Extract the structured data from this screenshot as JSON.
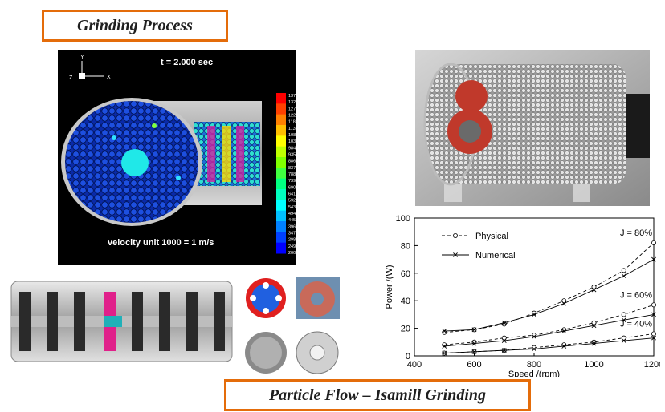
{
  "titles": {
    "top": "Grinding Process",
    "bottom": "Particle Flow – Isamill Grinding"
  },
  "simulation": {
    "time_label": "t = 2.000 sec",
    "velocity_label": "velocity unit 1000 = 1 m/s",
    "axis_y": "Y",
    "axis_z": "Z",
    "axis_x": "X",
    "colorbar_ticks": [
      "1376",
      "1327",
      "1278",
      "1229",
      "1180",
      "1131",
      "1082",
      "1033",
      "984",
      "935",
      "886",
      "837",
      "788",
      "739",
      "690",
      "641",
      "592",
      "543",
      "494",
      "445",
      "396",
      "347",
      "298",
      "249",
      "200"
    ],
    "colorbar_colors": [
      "#ff0000",
      "#ff4000",
      "#ff8000",
      "#ffbf00",
      "#ffff00",
      "#bfff00",
      "#80ff00",
      "#40ff40",
      "#00ff80",
      "#00ffbf",
      "#00ffff",
      "#00bfff",
      "#0080ff",
      "#0040ff",
      "#0000ff"
    ]
  },
  "chart_data": {
    "type": "line",
    "xlabel": "Speed /(rpm)",
    "ylabel": "Power /(W)",
    "xlim": [
      400,
      1200
    ],
    "ylim": [
      0,
      100
    ],
    "xticks": [
      "400",
      "600",
      "800",
      "1000",
      "1200"
    ],
    "yticks": [
      "0",
      "20",
      "40",
      "60",
      "80",
      "100"
    ],
    "legend": [
      {
        "name": "Physical",
        "style": "dashed-circle"
      },
      {
        "name": "Numerical",
        "style": "solid-cross"
      }
    ],
    "legend_position": "top-left",
    "annotations": [
      "J = 80%",
      "J = 60%",
      "J = 40%"
    ],
    "x": [
      500,
      600,
      700,
      800,
      900,
      1000,
      1100,
      1200
    ],
    "series": [
      {
        "group": "J = 80%",
        "kind": "Physical",
        "values": [
          17,
          19,
          23,
          31,
          40,
          50,
          62,
          82
        ]
      },
      {
        "group": "J = 80%",
        "kind": "Numerical",
        "values": [
          18,
          19,
          24,
          30,
          38,
          48,
          58,
          70
        ]
      },
      {
        "group": "J = 60%",
        "kind": "Physical",
        "values": [
          8,
          10,
          13,
          15,
          19,
          24,
          30,
          37
        ]
      },
      {
        "group": "J = 60%",
        "kind": "Numerical",
        "values": [
          7,
          9,
          11,
          14,
          18,
          22,
          26,
          30
        ]
      },
      {
        "group": "J = 40%",
        "kind": "Physical",
        "values": [
          2,
          3,
          4,
          6,
          8,
          10,
          13,
          16
        ]
      },
      {
        "group": "J = 40%",
        "kind": "Numerical",
        "values": [
          2,
          3,
          4,
          5,
          7,
          9,
          11,
          13
        ]
      }
    ]
  }
}
